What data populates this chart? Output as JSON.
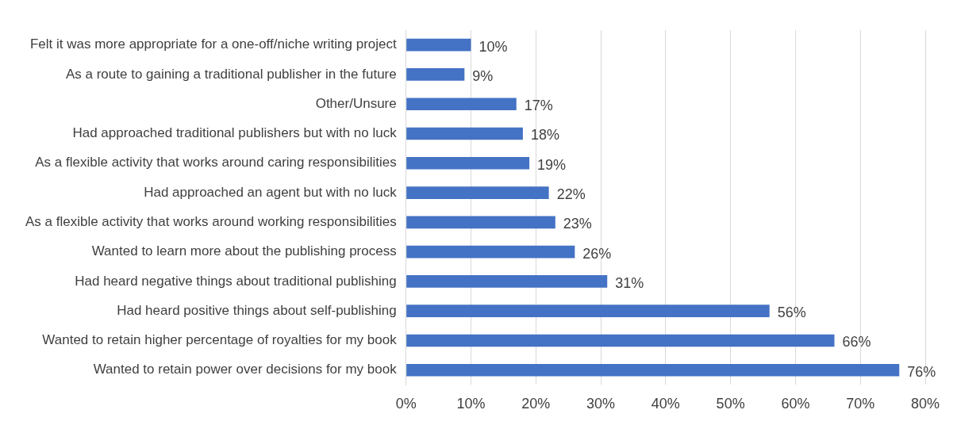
{
  "chart_data": {
    "type": "bar",
    "orientation": "horizontal",
    "categories": [
      "Felt it was more appropriate for a one-off/niche writing project",
      "As a route to gaining a traditional publisher in the future",
      "Other/Unsure",
      "Had approached traditional publishers but with no luck",
      "As a flexible activity that works around caring responsibilities",
      "Had approached an agent but with no luck",
      "As a flexible activity that works around working responsibilities",
      "Wanted to learn more about the publishing process",
      "Had heard negative things about traditional publishing",
      "Had heard positive things about self-publishing",
      "Wanted to retain higher percentage of royalties for my book",
      "Wanted to retain power over decisions for my book"
    ],
    "values": [
      10,
      9,
      17,
      18,
      19,
      22,
      23,
      26,
      31,
      56,
      66,
      76
    ],
    "value_labels": [
      "10%",
      "9%",
      "17%",
      "18%",
      "19%",
      "22%",
      "23%",
      "26%",
      "31%",
      "56%",
      "66%",
      "76%"
    ],
    "color": "#4472c4",
    "xlim": [
      0,
      80
    ],
    "xticks": [
      {
        "value": 0,
        "label": "0%"
      },
      {
        "value": 10,
        "label": "10%"
      },
      {
        "value": 20,
        "label": "20%"
      },
      {
        "value": 30,
        "label": "30%"
      },
      {
        "value": 40,
        "label": "40%"
      },
      {
        "value": 50,
        "label": "50%"
      },
      {
        "value": 60,
        "label": "60%"
      },
      {
        "value": 70,
        "label": "70%"
      },
      {
        "value": 80,
        "label": "80%"
      }
    ],
    "grid": "x",
    "legend": false
  }
}
